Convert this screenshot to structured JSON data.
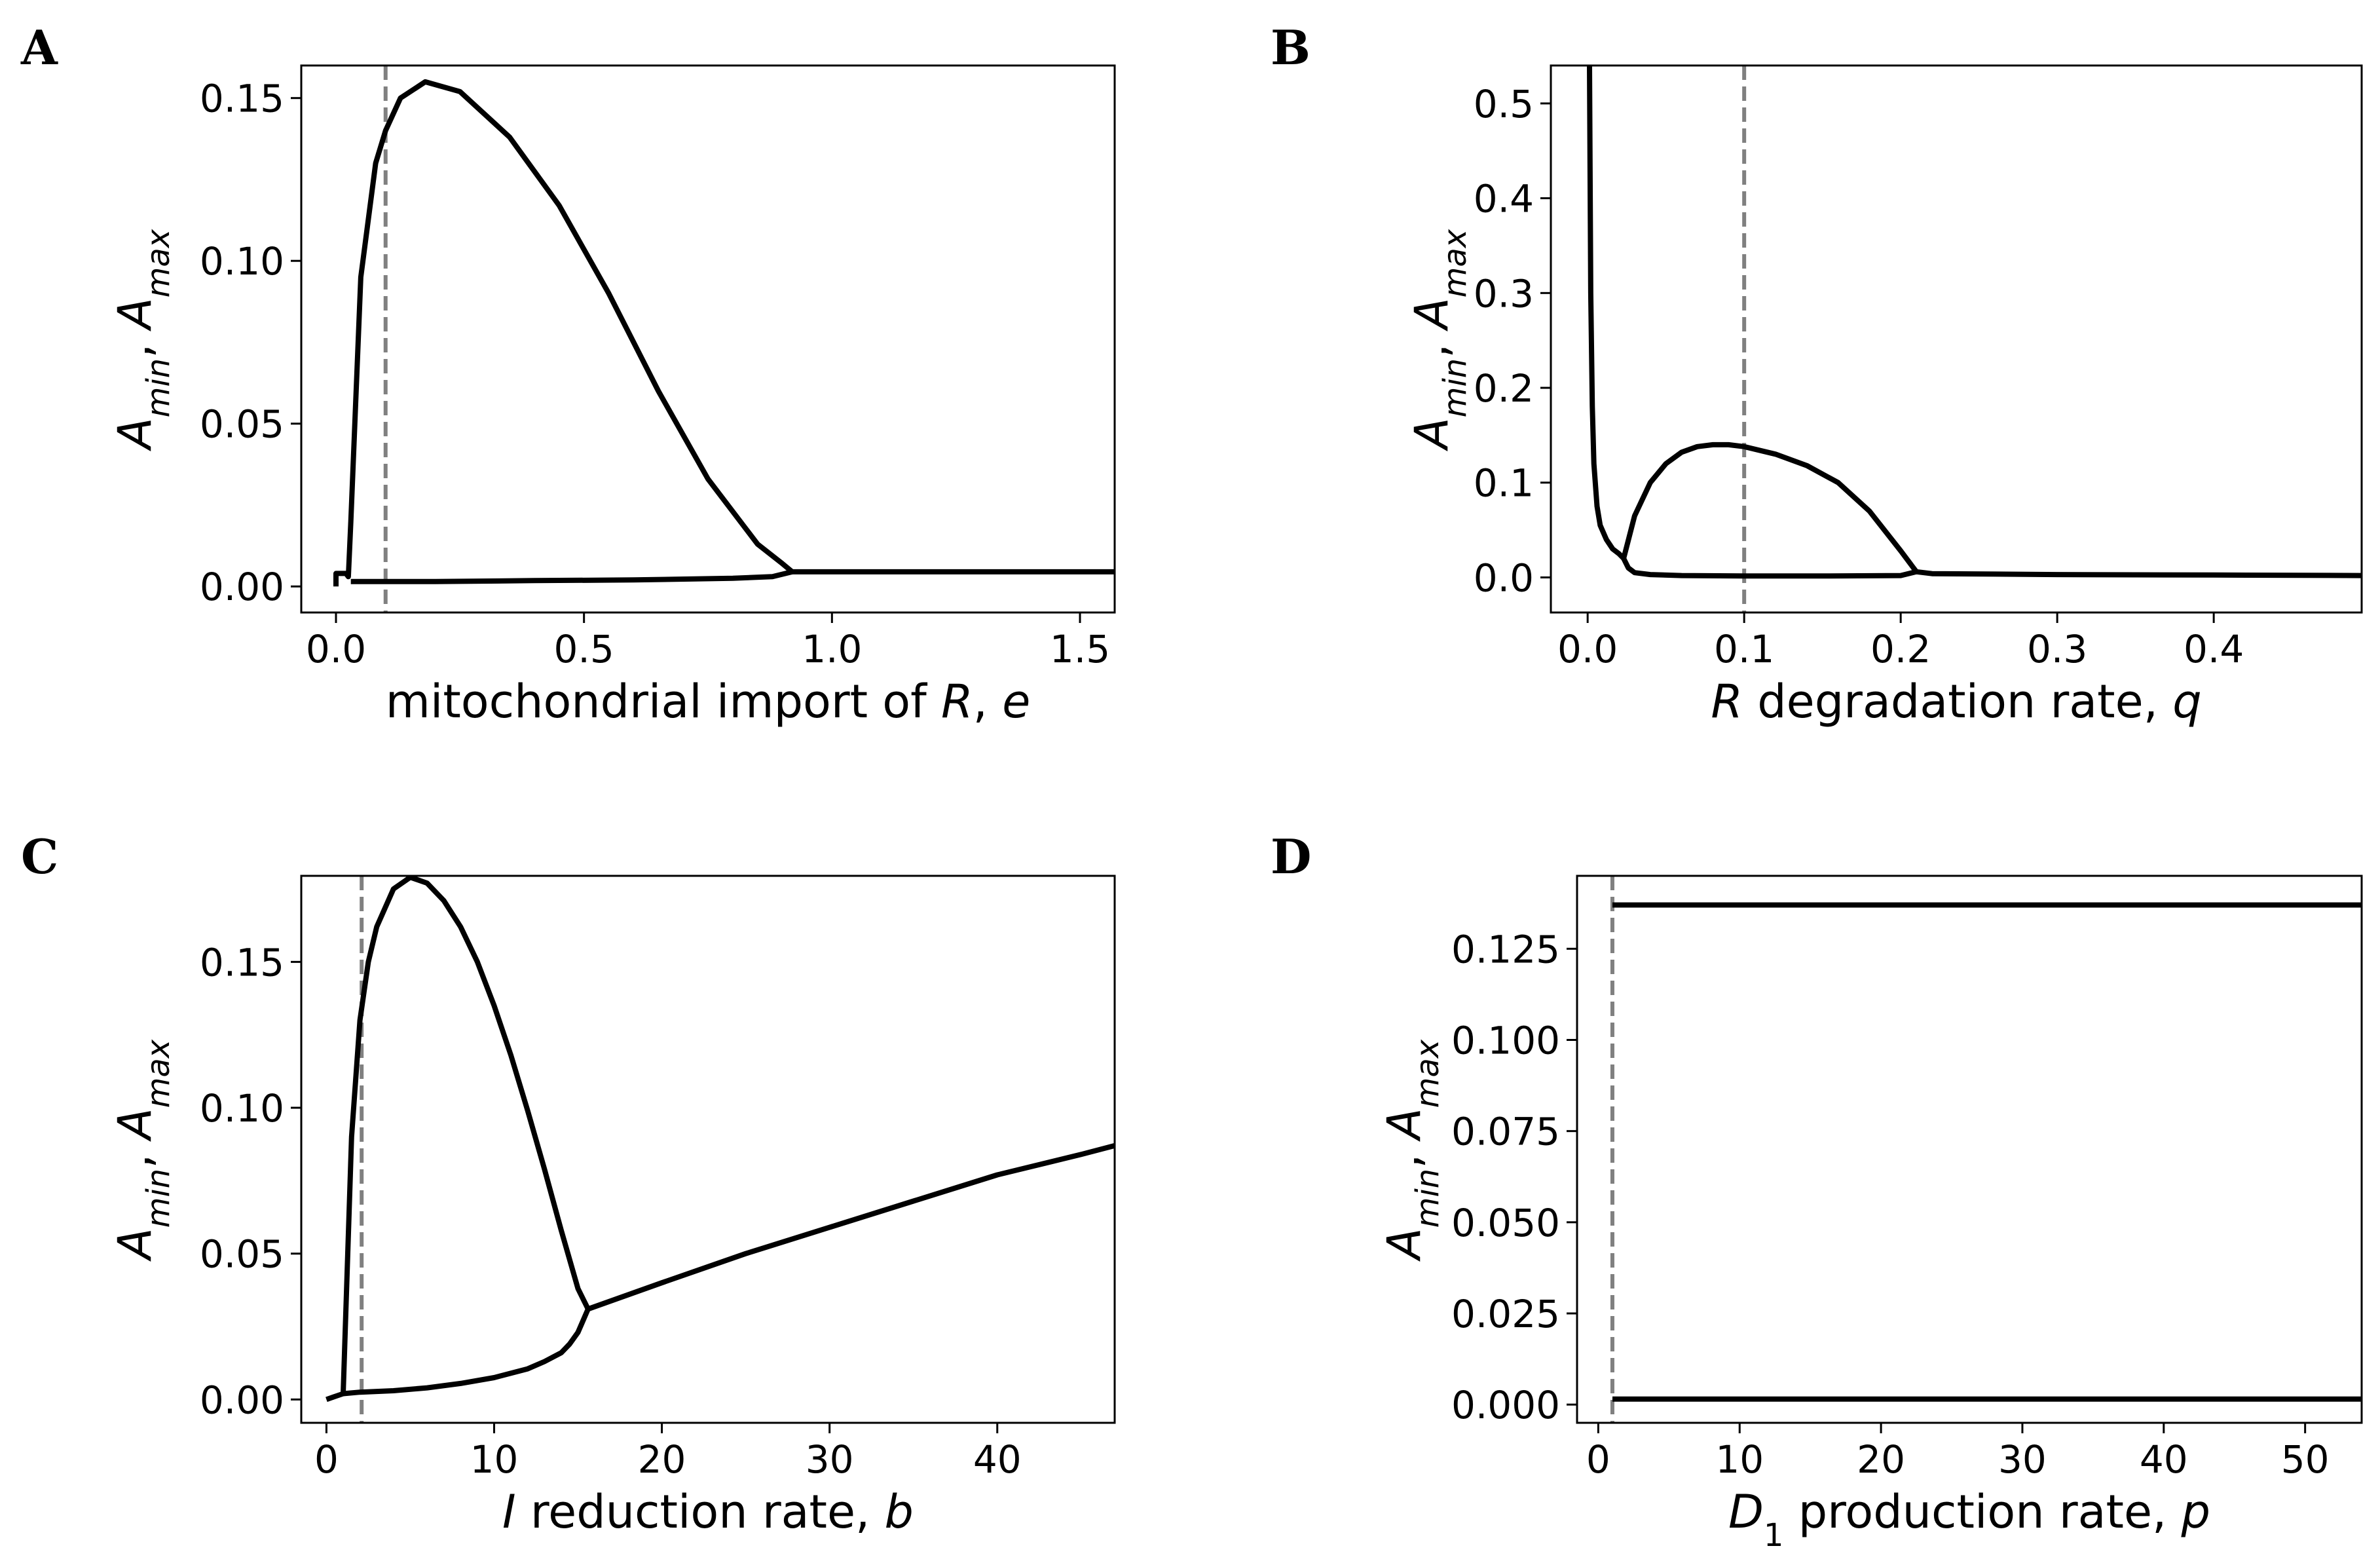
{
  "figure": {
    "ref_line_color": "#808080",
    "curve_color": "#000000"
  },
  "chart_data": [
    {
      "type": "line",
      "panel": "A",
      "xlabel_parts": [
        {
          "t": "mitochondrial import of "
        },
        {
          "t": "R",
          "i": true
        },
        {
          "t": ", "
        },
        {
          "t": "e",
          "i": true
        }
      ],
      "ylabel": "A_min, A_max",
      "xlim": [
        -0.07,
        1.57
      ],
      "ylim": [
        -0.008,
        0.16
      ],
      "xticks": [
        0.0,
        0.5,
        1.0,
        1.5
      ],
      "xtick_labels": [
        "0.0",
        "0.5",
        "1.0",
        "1.5"
      ],
      "yticks": [
        0.0,
        0.05,
        0.1,
        0.15
      ],
      "ytick_labels": [
        "0.00",
        "0.05",
        "0.10",
        "0.15"
      ],
      "ref_line_x": 0.1,
      "series": [
        {
          "name": "A_max",
          "x": [
            0.0,
            0.0,
            0.02,
            0.025,
            0.03,
            0.05,
            0.08,
            0.1,
            0.13,
            0.18,
            0.25,
            0.35,
            0.45,
            0.55,
            0.65,
            0.75,
            0.85,
            0.9,
            0.92,
            1.0,
            1.2,
            1.4,
            1.57
          ],
          "y": [
            0.0,
            0.004,
            0.004,
            0.003,
            0.02,
            0.095,
            0.13,
            0.14,
            0.15,
            0.155,
            0.152,
            0.138,
            0.117,
            0.09,
            0.06,
            0.033,
            0.013,
            0.007,
            0.0045,
            0.0045,
            0.0045,
            0.0045,
            0.0045
          ]
        },
        {
          "name": "A_min",
          "x": [
            0.03,
            0.2,
            0.4,
            0.6,
            0.8,
            0.88,
            0.92
          ],
          "y": [
            0.0015,
            0.0015,
            0.0018,
            0.002,
            0.0025,
            0.003,
            0.0045
          ]
        }
      ]
    },
    {
      "type": "line",
      "panel": "B",
      "xlabel_parts": [
        {
          "t": "R",
          "i": true
        },
        {
          "t": " degradation rate, "
        },
        {
          "t": "q",
          "i": true
        }
      ],
      "ylabel": "A_min, A_max",
      "xlim": [
        -0.0235,
        0.4945
      ],
      "ylim": [
        -0.037,
        0.54
      ],
      "xticks": [
        0.0,
        0.1,
        0.2,
        0.3,
        0.4
      ],
      "xtick_labels": [
        "0.0",
        "0.1",
        "0.2",
        "0.3",
        "0.4"
      ],
      "yticks": [
        0.0,
        0.1,
        0.2,
        0.3,
        0.4,
        0.5
      ],
      "ytick_labels": [
        "0.0",
        "0.1",
        "0.2",
        "0.3",
        "0.4",
        "0.5"
      ],
      "ref_line_x": 0.1,
      "series": [
        {
          "name": "A_max",
          "x": [
            0.0012,
            0.0015,
            0.002,
            0.003,
            0.004,
            0.006,
            0.008,
            0.012,
            0.016,
            0.02,
            0.023,
            0.03,
            0.04,
            0.05,
            0.06,
            0.07,
            0.08,
            0.09,
            0.1,
            0.12,
            0.14,
            0.16,
            0.18,
            0.2,
            0.21,
            0.22,
            0.3,
            0.4,
            0.4945
          ],
          "y": [
            0.54,
            0.45,
            0.3,
            0.18,
            0.12,
            0.075,
            0.055,
            0.04,
            0.03,
            0.025,
            0.02,
            0.065,
            0.1,
            0.12,
            0.132,
            0.138,
            0.14,
            0.14,
            0.138,
            0.13,
            0.118,
            0.1,
            0.07,
            0.028,
            0.006,
            0.004,
            0.003,
            0.0025,
            0.002
          ]
        },
        {
          "name": "A_min",
          "x": [
            0.023,
            0.026,
            0.03,
            0.04,
            0.06,
            0.1,
            0.15,
            0.2,
            0.21
          ],
          "y": [
            0.02,
            0.01,
            0.005,
            0.003,
            0.002,
            0.0015,
            0.0015,
            0.002,
            0.006
          ]
        }
      ]
    },
    {
      "type": "line",
      "panel": "C",
      "xlabel_parts": [
        {
          "t": "I",
          "i": true
        },
        {
          "t": " reduction rate, "
        },
        {
          "t": "b",
          "i": true
        }
      ],
      "ylabel": "A_min, A_max",
      "xlim": [
        -1.5,
        47
      ],
      "ylim": [
        -0.008,
        0.1795
      ],
      "xticks": [
        0,
        10,
        20,
        30,
        40
      ],
      "xtick_labels": [
        "0",
        "10",
        "20",
        "30",
        "40"
      ],
      "yticks": [
        0.0,
        0.05,
        0.1,
        0.15
      ],
      "ytick_labels": [
        "0.00",
        "0.05",
        "0.10",
        "0.15"
      ],
      "ref_line_x": 2.1,
      "series": [
        {
          "name": "A_max",
          "x": [
            0.0,
            0.5,
            1.0,
            1.1,
            1.5,
            2.0,
            2.5,
            3.0,
            4.0,
            5.0,
            6.0,
            7.0,
            8.0,
            9.0,
            10.0,
            11.0,
            12.0,
            13.0,
            14.0,
            15.0,
            15.6,
            20,
            25,
            30,
            35,
            40,
            45,
            47
          ],
          "y": [
            0.0,
            0.001,
            0.002,
            0.02,
            0.09,
            0.13,
            0.15,
            0.162,
            0.175,
            0.179,
            0.177,
            0.171,
            0.162,
            0.15,
            0.135,
            0.118,
            0.099,
            0.079,
            0.058,
            0.038,
            0.031,
            0.04,
            0.05,
            0.059,
            0.068,
            0.077,
            0.084,
            0.087
          ]
        },
        {
          "name": "A_min",
          "x": [
            1.0,
            2.0,
            4.0,
            6.0,
            8.0,
            10.0,
            12.0,
            13.0,
            14.0,
            14.5,
            15.0,
            15.3,
            15.6
          ],
          "y": [
            0.002,
            0.0025,
            0.003,
            0.004,
            0.0055,
            0.0075,
            0.0105,
            0.013,
            0.016,
            0.019,
            0.023,
            0.027,
            0.031
          ]
        }
      ]
    },
    {
      "type": "line",
      "panel": "D",
      "xlabel_parts": [
        {
          "t": "D",
          "i": true
        },
        {
          "t": "1",
          "sub": true
        },
        {
          "t": " production rate, "
        },
        {
          "t": "p",
          "i": true
        }
      ],
      "ylabel": "A_min, A_max",
      "xlim": [
        -1.5,
        54
      ],
      "ylim": [
        -0.005,
        0.145
      ],
      "xticks": [
        0,
        10,
        20,
        30,
        40,
        50
      ],
      "xtick_labels": [
        "0",
        "10",
        "20",
        "30",
        "40",
        "50"
      ],
      "yticks": [
        0.0,
        0.025,
        0.05,
        0.075,
        0.1,
        0.125
      ],
      "ytick_labels": [
        "0.000",
        "0.025",
        "0.050",
        "0.075",
        "0.100",
        "0.125"
      ],
      "ref_line_x": 1.0,
      "series": [
        {
          "name": "A_max",
          "x": [
            1.0,
            54
          ],
          "y": [
            0.137,
            0.137
          ]
        },
        {
          "name": "A_min",
          "x": [
            1.0,
            54
          ],
          "y": [
            0.0015,
            0.0015
          ]
        }
      ]
    }
  ]
}
